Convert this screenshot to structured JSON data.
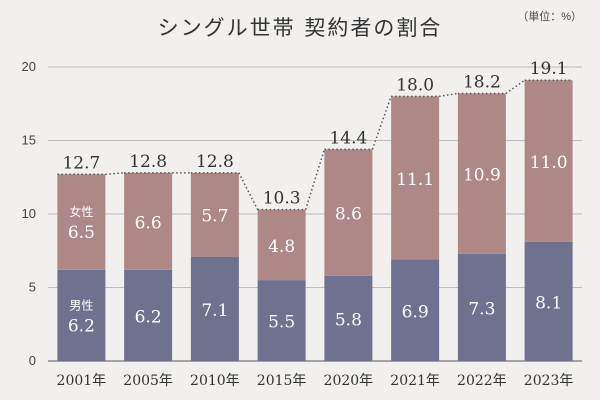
{
  "chart_data": {
    "type": "bar",
    "stacked": true,
    "title": "シングル世帯 契約者の割合",
    "unit": "（単位：%）",
    "categories": [
      "2001年",
      "2005年",
      "2010年",
      "2015年",
      "2020年",
      "2021年",
      "2022年",
      "2023年"
    ],
    "series": [
      {
        "name": "男性",
        "values": [
          6.2,
          6.2,
          7.1,
          5.5,
          5.8,
          6.9,
          7.3,
          8.1
        ]
      },
      {
        "name": "女性",
        "values": [
          6.5,
          6.6,
          5.7,
          4.8,
          8.6,
          11.1,
          10.9,
          11.0
        ]
      }
    ],
    "totals": [
      12.7,
      12.8,
      12.8,
      10.3,
      14.4,
      18.0,
      18.2,
      19.1
    ],
    "ylim": [
      0,
      20
    ],
    "yticks": [
      0,
      5,
      10,
      15,
      20
    ],
    "grid": true,
    "colors": {
      "male": "#70708f",
      "female": "#ad8886",
      "grid": "#bdbdbd",
      "background": "#f1f0ee"
    }
  }
}
